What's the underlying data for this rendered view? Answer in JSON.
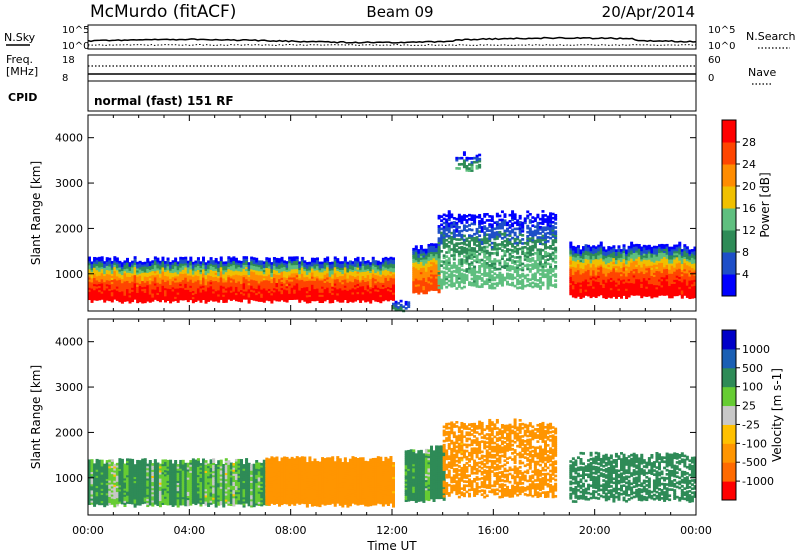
{
  "header": {
    "station": "McMurdo (fitACF)",
    "beam": "Beam 09",
    "date": "20/Apr/2014"
  },
  "noise_panel": {
    "left_label": "N.Sky",
    "left_ticks": [
      "10^5",
      "10^0"
    ],
    "right_label": "N.Search",
    "right_ticks": [
      "10^5",
      "10^0"
    ]
  },
  "freq_panel": {
    "left_label_1": "Freq.",
    "left_label_2": "[MHz]",
    "left_ticks": [
      "18",
      "8"
    ],
    "right_label": "Nave",
    "right_ticks": [
      "60",
      "0"
    ]
  },
  "cpid": {
    "label": "CPID",
    "text": "normal (fast) 151 RF"
  },
  "axes": {
    "ylabel": "Slant Range [km]",
    "xlabel": "Time UT",
    "yticks": [
      "1000",
      "2000",
      "3000",
      "4000"
    ],
    "xticks": [
      "00:00",
      "04:00",
      "08:00",
      "12:00",
      "16:00",
      "20:00",
      "00:00"
    ]
  },
  "colors": {
    "power_scale": [
      "#0000ff",
      "#1e4fc8",
      "#2e8b57",
      "#5fbf7f",
      "#f0c000",
      "#ff8c00",
      "#ff4500",
      "#ff0000"
    ],
    "velocity_scale": [
      "#ff0000",
      "#ff6a00",
      "#ff9500",
      "#ffc000",
      "#c8c8c8",
      "#66cc33",
      "#2e8b57",
      "#1a5fb4",
      "#0000c8"
    ]
  },
  "chart_data": [
    {
      "type": "heatmap",
      "name": "power",
      "title": "",
      "xlabel": "",
      "ylabel": "Slant Range [km]",
      "xlim": [
        0,
        24
      ],
      "ylim": [
        180,
        4500
      ],
      "colorbar": {
        "label": "Power [dB]",
        "ticks": [
          "4",
          "8",
          "12",
          "16",
          "20",
          "24",
          "28"
        ],
        "range": [
          0,
          32
        ]
      },
      "echo_regions": [
        {
          "t_start": 0.0,
          "t_end": 12.0,
          "range_lower_km": 400,
          "range_upper_km": 1300,
          "peak_db": 30
        },
        {
          "t_start": 12.0,
          "t_end": 12.6,
          "range_lower_km": 200,
          "range_upper_km": 400,
          "peak_db": 8
        },
        {
          "t_start": 12.8,
          "t_end": 13.8,
          "range_lower_km": 600,
          "range_upper_km": 1600,
          "peak_db": 26
        },
        {
          "t_start": 13.8,
          "t_end": 18.5,
          "range_lower_km": 700,
          "range_upper_km": 2300,
          "peak_db": 14
        },
        {
          "t_start": 14.5,
          "t_end": 15.4,
          "range_lower_km": 3300,
          "range_upper_km": 3600,
          "peak_db": 12
        },
        {
          "t_start": 19.0,
          "t_end": 24.0,
          "range_lower_km": 500,
          "range_upper_km": 1600,
          "peak_db": 30
        }
      ]
    },
    {
      "type": "heatmap",
      "name": "velocity",
      "title": "",
      "xlabel": "Time UT",
      "ylabel": "Slant Range [km]",
      "xlim": [
        0,
        24
      ],
      "ylim": [
        180,
        4500
      ],
      "colorbar": {
        "label": "Velocity [m s-1]",
        "ticks": [
          "-1000",
          "-500",
          "-100",
          "-25",
          "25",
          "100",
          "500",
          "1000"
        ],
        "range": [
          -1200,
          1200
        ]
      },
      "echo_regions": [
        {
          "t_start": 0.0,
          "t_end": 7.0,
          "range_lower_km": 400,
          "range_upper_km": 1350,
          "dominant_velocity_ms": 150
        },
        {
          "t_start": 7.0,
          "t_end": 12.0,
          "range_lower_km": 400,
          "range_upper_km": 1400,
          "dominant_velocity_ms": -300
        },
        {
          "t_start": 12.5,
          "t_end": 14.0,
          "range_lower_km": 500,
          "range_upper_km": 1600,
          "dominant_velocity_ms": 200
        },
        {
          "t_start": 14.0,
          "t_end": 18.5,
          "range_lower_km": 600,
          "range_upper_km": 2200,
          "dominant_velocity_ms": -300
        },
        {
          "t_start": 19.0,
          "t_end": 24.0,
          "range_lower_km": 500,
          "range_upper_km": 1500,
          "dominant_velocity_ms": 300
        }
      ]
    }
  ]
}
